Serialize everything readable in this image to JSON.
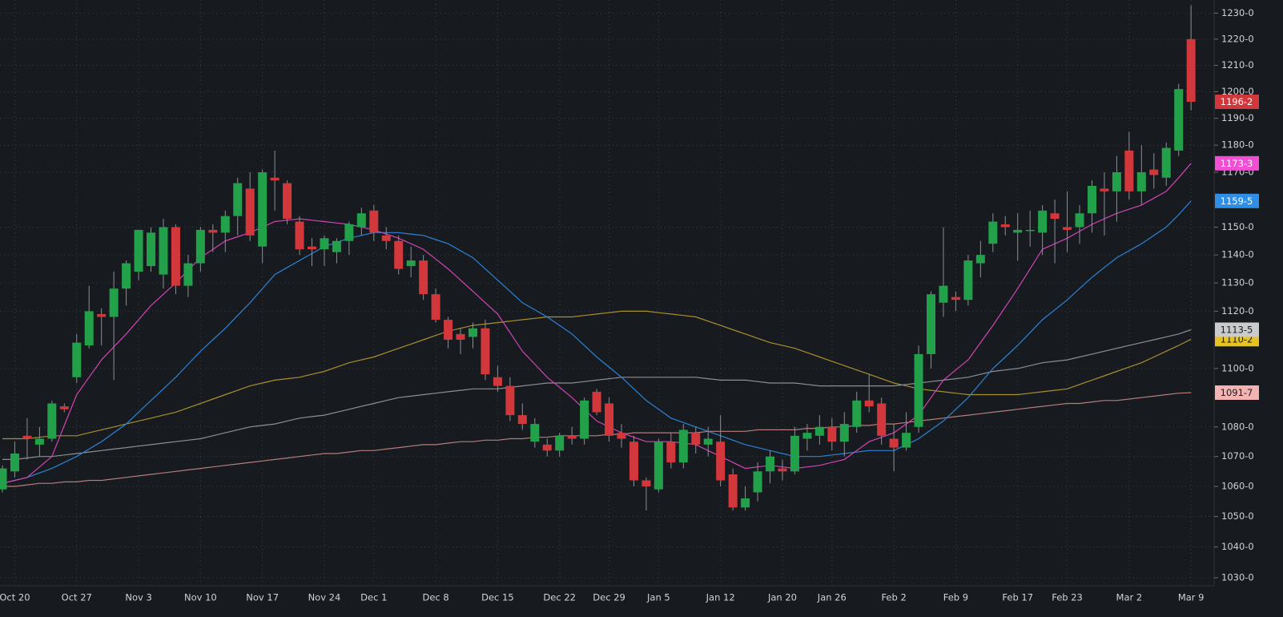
{
  "chart_data": {
    "type": "candlestick",
    "log_scale": true,
    "grid": true,
    "up_color": "#22a04a",
    "down_color": "#d2383b",
    "ylim": [
      1027.4,
      1235.1
    ],
    "yticks": [
      {
        "value": 1030,
        "label": "1030-0"
      },
      {
        "value": 1040,
        "label": "1040-0"
      },
      {
        "value": 1050,
        "label": "1050-0"
      },
      {
        "value": 1060,
        "label": "1060-0"
      },
      {
        "value": 1070,
        "label": "1070-0"
      },
      {
        "value": 1080,
        "label": "1080-0"
      },
      {
        "value": 1100,
        "label": "1100-0"
      },
      {
        "value": 1120,
        "label": "1120-0"
      },
      {
        "value": 1130,
        "label": "1130-0"
      },
      {
        "value": 1140,
        "label": "1140-0"
      },
      {
        "value": 1150,
        "label": "1150-0"
      },
      {
        "value": 1170,
        "label": "1170-0"
      },
      {
        "value": 1180,
        "label": "1180-0"
      },
      {
        "value": 1190,
        "label": "1190-0"
      },
      {
        "value": 1200,
        "label": "1200-0"
      },
      {
        "value": 1210,
        "label": "1210-0"
      },
      {
        "value": 1220,
        "label": "1220-0"
      },
      {
        "value": 1230,
        "label": "1230-0"
      }
    ],
    "categories": [
      null,
      "Oct 20",
      null,
      null,
      null,
      null,
      "Oct 27",
      null,
      null,
      null,
      null,
      "Nov 3",
      null,
      null,
      null,
      null,
      "Nov 10",
      null,
      null,
      null,
      null,
      "Nov 17",
      null,
      null,
      null,
      null,
      "Nov 24",
      null,
      null,
      null,
      "Dec 1",
      null,
      null,
      null,
      null,
      "Dec 8",
      null,
      null,
      null,
      null,
      "Dec 15",
      null,
      null,
      null,
      null,
      "Dec 22",
      null,
      null,
      null,
      "Dec 29",
      null,
      null,
      null,
      "Jan 5",
      null,
      null,
      null,
      null,
      "Jan 12",
      null,
      null,
      null,
      null,
      "Jan 20",
      null,
      null,
      null,
      "Jan 26",
      null,
      null,
      null,
      null,
      "Feb 2",
      null,
      null,
      null,
      null,
      "Feb 9",
      null,
      null,
      null,
      null,
      "Feb 17",
      null,
      null,
      null,
      "Feb 23",
      null,
      null,
      null,
      null,
      "Mar 2",
      null,
      null,
      null,
      null,
      "Mar 9"
    ],
    "open": [
      1059,
      1065,
      1077,
      1074,
      1076,
      1087,
      1097,
      1108,
      1119,
      1118,
      1128,
      1134,
      1136,
      1133,
      1150,
      1129,
      1137,
      1149,
      1148,
      1154,
      1164,
      1143,
      1168,
      1166,
      1152,
      1143,
      1142,
      1141,
      1145,
      1150,
      1156,
      1147,
      1145,
      1136,
      1138,
      1126,
      1117,
      1112,
      1111,
      1114,
      1097,
      1094,
      1084,
      1075,
      1074,
      1072,
      1077,
      1076,
      1092,
      1088,
      1078,
      1075,
      1062,
      1059,
      1075,
      1068,
      1078,
      1074,
      1075,
      1064,
      1053,
      1058,
      1065,
      1066,
      1065,
      1076,
      1077,
      1080,
      1075,
      1080,
      1089,
      1088,
      1076,
      1073,
      1080,
      1105,
      1123,
      1125,
      1124,
      1137,
      1144,
      1151,
      1148,
      1149,
      1148,
      1155,
      1150,
      1150,
      1155,
      1164,
      1163,
      1178,
      1163,
      1171,
      1168,
      1178,
      1220
    ],
    "high": [
      1067,
      1075,
      1083,
      1080,
      1089,
      1088,
      1112,
      1129,
      1121,
      1134,
      1138,
      1149,
      1150,
      1153,
      1151,
      1140,
      1150,
      1151,
      1156,
      1168,
      1170,
      1171,
      1178,
      1167,
      1154,
      1146,
      1147,
      1146,
      1152,
      1157,
      1158,
      1150,
      1147,
      1143,
      1140,
      1128,
      1118,
      1114,
      1116,
      1117,
      1101,
      1097,
      1088,
      1083,
      1076,
      1078,
      1080,
      1090,
      1093,
      1090,
      1081,
      1077,
      1063,
      1076,
      1078,
      1081,
      1080,
      1080,
      1084,
      1066,
      1060,
      1068,
      1072,
      1069,
      1080,
      1081,
      1084,
      1083,
      1085,
      1092,
      1098,
      1090,
      1081,
      1085,
      1108,
      1127,
      1150,
      1127,
      1140,
      1145,
      1155,
      1154,
      1155,
      1156,
      1158,
      1160,
      1163,
      1158,
      1167,
      1170,
      1176,
      1185,
      1180,
      1177,
      1181,
      1203,
      1233
    ],
    "low": [
      1058,
      1063,
      1069,
      1070,
      1075,
      1085,
      1095,
      1107,
      1108,
      1096,
      1122,
      1131,
      1134,
      1128,
      1126,
      1125,
      1134,
      1141,
      1141,
      1147,
      1145,
      1137,
      1156,
      1151,
      1140,
      1136,
      1136,
      1137,
      1140,
      1147,
      1145,
      1142,
      1133,
      1132,
      1124,
      1116,
      1107,
      1105,
      1107,
      1096,
      1092,
      1082,
      1079,
      1073,
      1070,
      1070,
      1074,
      1074,
      1084,
      1075,
      1073,
      1060,
      1052,
      1058,
      1066,
      1066,
      1071,
      1070,
      1060,
      1052,
      1052,
      1055,
      1061,
      1062,
      1064,
      1072,
      1074,
      1072,
      1070,
      1078,
      1085,
      1074,
      1065,
      1072,
      1078,
      1100,
      1118,
      1120,
      1122,
      1132,
      1141,
      1147,
      1138,
      1143,
      1140,
      1137,
      1141,
      1144,
      1148,
      1147,
      1152,
      1160,
      1158,
      1164,
      1165,
      1176,
      1193
    ],
    "close": [
      1066,
      1071,
      1076,
      1076,
      1088,
      1086,
      1109,
      1120,
      1118,
      1128,
      1137,
      1149,
      1148,
      1150,
      1129,
      1137,
      1149,
      1148,
      1154,
      1166,
      1147,
      1170,
      1167,
      1153,
      1142,
      1142,
      1146,
      1145,
      1151,
      1155,
      1148,
      1145,
      1135,
      1138,
      1126,
      1117,
      1110,
      1110,
      1114,
      1098,
      1094,
      1084,
      1081,
      1081,
      1072,
      1077,
      1076,
      1089,
      1085,
      1077,
      1076,
      1062,
      1060,
      1075,
      1068,
      1079,
      1074,
      1076,
      1062,
      1053,
      1056,
      1065,
      1070,
      1065,
      1077,
      1078,
      1080,
      1075,
      1081,
      1089,
      1087,
      1077,
      1073,
      1078,
      1105,
      1126,
      1129,
      1124,
      1138,
      1140,
      1152,
      1150,
      1149,
      1149,
      1156,
      1153,
      1149,
      1155,
      1165,
      1163,
      1170,
      1163,
      1170,
      1169,
      1179,
      1201,
      1196.2
    ],
    "last_label": "1196-2",
    "overlays": [
      {
        "color": "#a98f2e",
        "label_color": "#e8c21e",
        "last_label": "1110-2",
        "values": [
          1076,
          1076,
          1076,
          1076.5,
          1077,
          1077,
          1077,
          1078,
          1079,
          1080,
          1081,
          1082,
          1083,
          1084,
          1085,
          1086.5,
          1088,
          1089.5,
          1091,
          1092.5,
          1094,
          1095,
          1096,
          1096.5,
          1097,
          1098,
          1099,
          1100.5,
          1102,
          1103,
          1104,
          1105.5,
          1107,
          1108.5,
          1110,
          1111.5,
          1113,
          1114,
          1115,
          1115.5,
          1116,
          1116.5,
          1117,
          1117.5,
          1118,
          1118,
          1118,
          1118.5,
          1119,
          1119.5,
          1120,
          1120,
          1120,
          1119.5,
          1119,
          1118.5,
          1118,
          1116.5,
          1115,
          1113.5,
          1112,
          1110.5,
          1109,
          1108,
          1107,
          1105.5,
          1104,
          1102.5,
          1101,
          1099.5,
          1098,
          1096.5,
          1095,
          1094,
          1093,
          1092.5,
          1092,
          1091.5,
          1091,
          1091,
          1091,
          1091,
          1091,
          1091.5,
          1092,
          1092.5,
          1093,
          1094.5,
          1096,
          1097.5,
          1099,
          1100.5,
          1102,
          1104,
          1106,
          1108,
          1110.2
        ]
      },
      {
        "color": "#8b9096",
        "label_color": "#c9cbcd",
        "last_label": "1113-5",
        "values": [
          1069,
          1069,
          1069.5,
          1070,
          1070,
          1070.5,
          1071,
          1071.5,
          1072,
          1072.5,
          1073,
          1073.5,
          1074,
          1074.5,
          1075,
          1075.5,
          1076,
          1077,
          1078,
          1079,
          1080,
          1080.5,
          1081,
          1082,
          1083,
          1083.5,
          1084,
          1085,
          1086,
          1087,
          1088,
          1089,
          1090,
          1090.5,
          1091,
          1091.5,
          1092,
          1092.5,
          1093,
          1093,
          1093,
          1093.5,
          1094,
          1094.5,
          1095,
          1095,
          1095,
          1095.5,
          1096,
          1096.5,
          1097,
          1097,
          1097,
          1097,
          1097,
          1097,
          1097,
          1096.5,
          1096,
          1096,
          1096,
          1095.5,
          1095,
          1095,
          1095,
          1094.5,
          1094,
          1094,
          1094,
          1094,
          1094,
          1094,
          1094,
          1094.5,
          1095,
          1095.5,
          1096,
          1096.5,
          1097,
          1098,
          1099,
          1099.5,
          1100,
          1101,
          1102,
          1102.5,
          1103,
          1104,
          1105,
          1106,
          1107,
          1108,
          1109,
          1110,
          1111,
          1112,
          1113.5
        ]
      },
      {
        "color": "#b57c7c",
        "label_color": "#f4b3b3",
        "last_label": "1091-7",
        "values": [
          1060,
          1060,
          1060.5,
          1061,
          1061,
          1061.5,
          1061.5,
          1062,
          1062,
          1062.5,
          1063,
          1063.5,
          1064,
          1064.5,
          1065,
          1065.5,
          1066,
          1066.5,
          1067,
          1067.5,
          1068,
          1068.5,
          1069,
          1069.5,
          1070,
          1070.5,
          1071,
          1071,
          1071.5,
          1072,
          1072,
          1072.5,
          1073,
          1073.5,
          1074,
          1074,
          1074.5,
          1075,
          1075,
          1075.5,
          1075.5,
          1076,
          1076,
          1076.5,
          1076.5,
          1077,
          1077,
          1077,
          1077,
          1077.5,
          1077.5,
          1078,
          1078,
          1078,
          1078,
          1078,
          1078,
          1078.5,
          1078.5,
          1078.5,
          1078.5,
          1079,
          1079,
          1079,
          1079,
          1079.5,
          1079.5,
          1080,
          1080,
          1080.5,
          1080.5,
          1081,
          1081,
          1081.5,
          1082,
          1082.5,
          1083,
          1083.5,
          1084,
          1084.5,
          1085,
          1085.5,
          1086,
          1086.5,
          1087,
          1087.5,
          1088,
          1088,
          1088.5,
          1089,
          1089,
          1089.5,
          1090,
          1090.5,
          1091,
          1091.5,
          1091.7
        ]
      },
      {
        "color": "#2c83d6",
        "label_color": "#2f8fe6",
        "last_label": "1159-5",
        "values": [
          1061,
          1062,
          1063,
          1064.5,
          1066,
          1068,
          1070,
          1072.5,
          1075,
          1078,
          1081,
          1085,
          1089,
          1093,
          1097,
          1101.5,
          1106,
          1110,
          1114,
          1118.5,
          1123,
          1128,
          1133,
          1135.5,
          1138,
          1140.5,
          1143,
          1144.5,
          1146,
          1147,
          1148,
          1148,
          1148,
          1147.5,
          1147,
          1145.5,
          1144,
          1141.5,
          1139,
          1135,
          1131,
          1127,
          1123,
          1120.5,
          1118,
          1115,
          1112,
          1108,
          1104,
          1100.5,
          1097,
          1093,
          1089,
          1086,
          1083,
          1081.5,
          1080,
          1078.5,
          1077,
          1075.5,
          1074,
          1073,
          1072,
          1071,
          1070,
          1070,
          1070,
          1070.5,
          1071,
          1071.5,
          1072,
          1072,
          1072,
          1074,
          1076,
          1079,
          1082,
          1086,
          1090,
          1095,
          1100,
          1104,
          1108,
          1112.5,
          1117,
          1120.5,
          1124,
          1128,
          1132,
          1135.5,
          1139,
          1141.5,
          1144,
          1147,
          1150,
          1154.5,
          1159.5
        ]
      },
      {
        "color": "#d443b6",
        "label_color": "#f04fd4",
        "last_label": "1173-3",
        "values": [
          1061,
          1062,
          1063,
          1066.5,
          1070,
          1080.5,
          1091,
          1097,
          1103,
          1107.5,
          1112,
          1117,
          1122,
          1126,
          1130,
          1134.5,
          1139,
          1142,
          1145,
          1146.5,
          1148,
          1150,
          1152,
          1152.5,
          1153,
          1152.5,
          1152,
          1151.5,
          1151,
          1150,
          1149,
          1147.5,
          1146,
          1144,
          1142,
          1138.5,
          1135,
          1131,
          1127,
          1123,
          1119,
          1112.5,
          1106,
          1101.5,
          1097,
          1093.5,
          1090,
          1086,
          1082,
          1080,
          1078,
          1076.5,
          1075,
          1075,
          1075,
          1074.5,
          1074,
          1072,
          1070,
          1068,
          1066,
          1066.5,
          1067,
          1066.5,
          1066,
          1066.5,
          1067,
          1068,
          1069,
          1072,
          1075,
          1076.5,
          1078,
          1081,
          1084,
          1090,
          1096,
          1099.5,
          1103,
          1109,
          1115,
          1121.5,
          1128,
          1135,
          1142,
          1144,
          1146,
          1148.5,
          1151,
          1153,
          1155,
          1156.5,
          1158,
          1160.5,
          1163,
          1168,
          1173.3
        ]
      }
    ]
  }
}
